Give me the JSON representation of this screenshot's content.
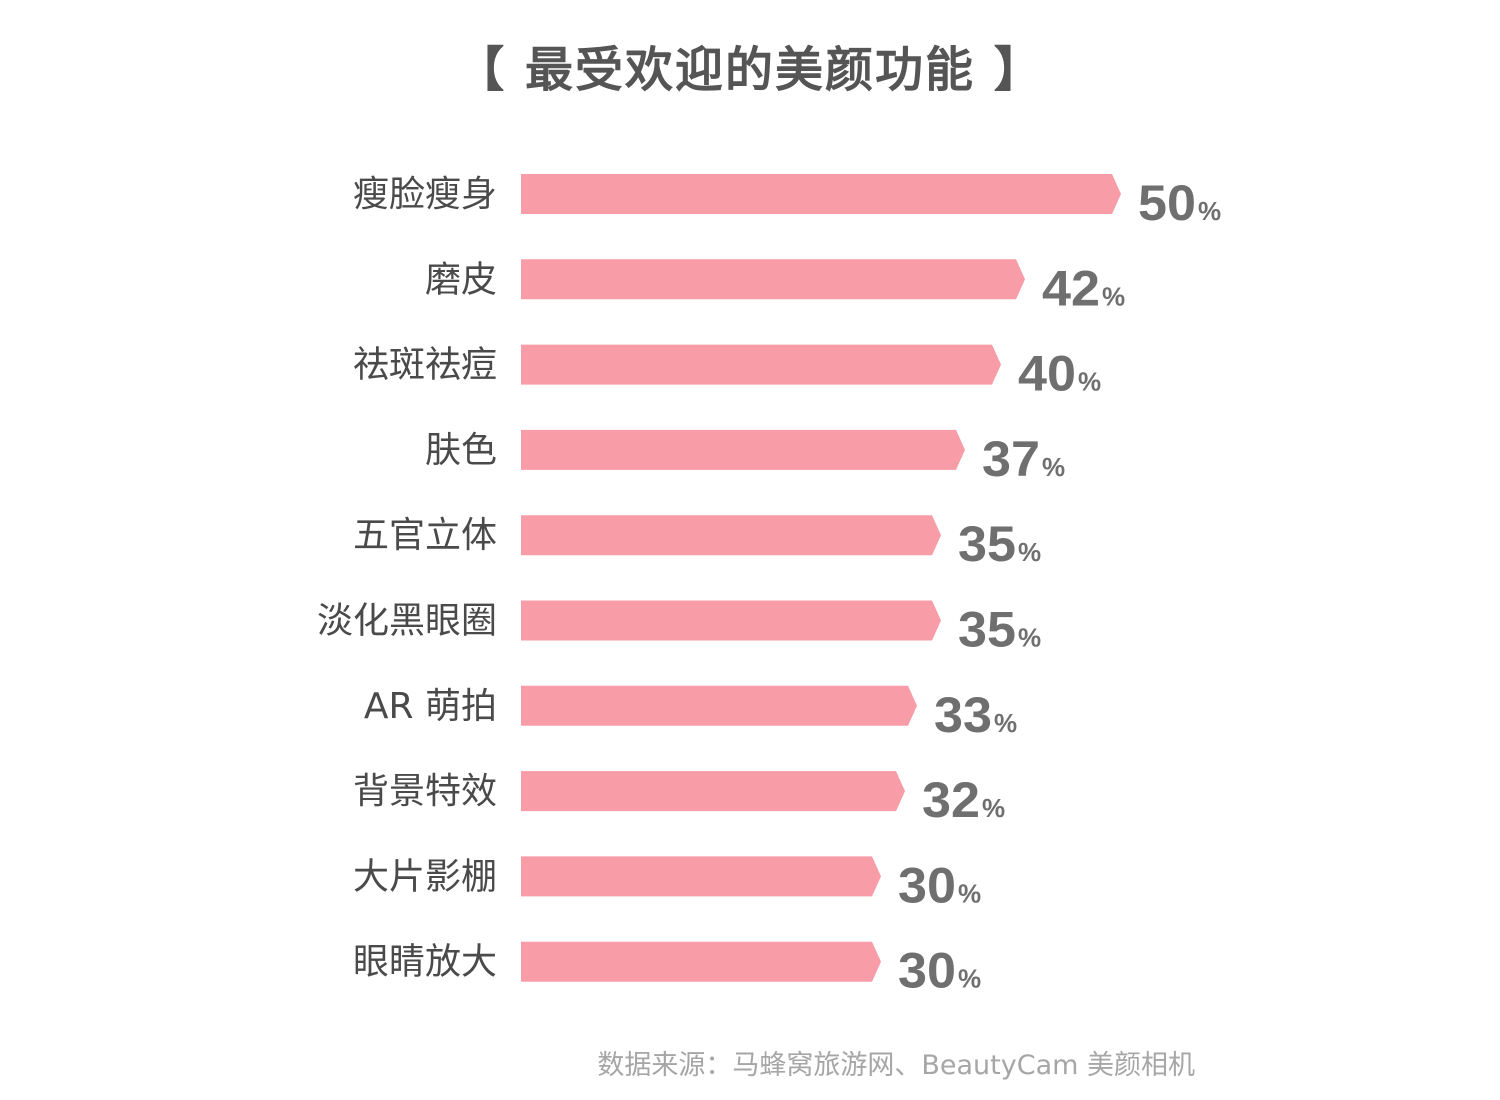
{
  "chart_data": {
    "type": "bar",
    "orientation": "horizontal",
    "title": "【 最受欢迎的美颜功能 】",
    "categories": [
      "瘦脸瘦身",
      "磨皮",
      "祛斑祛痘",
      "肤色",
      "五官立体",
      "淡化黑眼圈",
      "AR 萌拍",
      "背景特效",
      "大片影棚",
      "眼睛放大"
    ],
    "values": [
      50,
      42,
      40,
      37,
      35,
      35,
      33,
      32,
      30,
      30
    ],
    "value_suffix": "%",
    "xlim": [
      0,
      50
    ],
    "grid": false,
    "legend": "none",
    "bar_color": "#f89ca7",
    "label_color": "#4a4a4a",
    "value_color": "#6f6f6f"
  },
  "source": "数据来源：马蜂窝旅游网、BeautyCam 美颜相机"
}
